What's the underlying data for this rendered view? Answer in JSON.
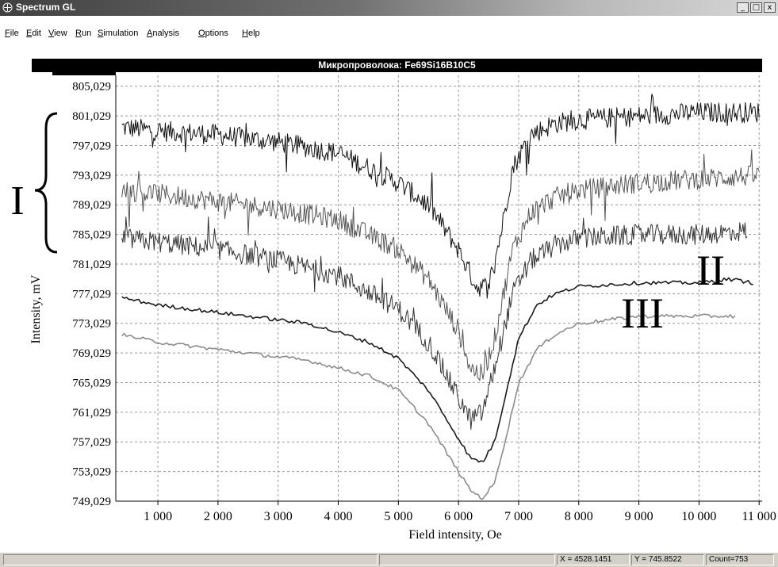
{
  "window": {
    "title": "Spectrum GL",
    "minimize": "_",
    "maximize": "□",
    "close": "x"
  },
  "menu": [
    "File",
    "Edit",
    "View",
    "Run",
    "Simulation",
    "Analysis",
    "Options",
    "Help"
  ],
  "plot_header": "Микропроволока: Fe69Si16B10C5",
  "status": {
    "x": "X = 4528.1451",
    "y": "Y = 745.8522",
    "count": "Count=753"
  },
  "annotations": {
    "group": "I",
    "curve_2": "II",
    "curve_3": "III"
  },
  "chart_data": {
    "type": "line",
    "xlabel": "Field intensity,  Oe",
    "ylabel": "Intensity,  mV",
    "xlim": [
      300,
      11050
    ],
    "ylim": [
      749.029,
      806.5
    ],
    "x_ticks": [
      1000,
      2000,
      3000,
      4000,
      5000,
      6000,
      7000,
      8000,
      9000,
      10000,
      11000
    ],
    "x_tick_labels": [
      "1 000",
      "2 000",
      "3 000",
      "4 000",
      "5 000",
      "6 000",
      "7 000",
      "8 000",
      "9 000",
      "10 000",
      "11 000"
    ],
    "y_ticks": [
      749.029,
      753.029,
      757.029,
      761.029,
      765.029,
      769.029,
      773.029,
      777.029,
      781.029,
      785.029,
      789.029,
      793.029,
      797.029,
      801.029,
      805.029
    ],
    "y_tick_labels": [
      "749,029",
      "753,029",
      "757,029",
      "761,029",
      "765,029",
      "769,029",
      "773,029",
      "777,029",
      "781,029",
      "785,029",
      "789,029",
      "793,029",
      "797,029",
      "801,029",
      "805,029"
    ],
    "grid": true,
    "series": [
      {
        "x": [
          400,
          1000,
          2000,
          3000,
          4000,
          5000,
          5500,
          6000,
          6300,
          6500,
          6700,
          6900,
          7200,
          7600,
          8000,
          9000,
          10000,
          11000
        ],
        "values": [
          799.5,
          799.0,
          798.5,
          797.5,
          796.0,
          792.0,
          789.0,
          783.0,
          778.0,
          778.0,
          785.0,
          794.0,
          798.5,
          800.0,
          800.5,
          801.0,
          801.5,
          801.5
        ],
        "color": "#111111",
        "noise": 1.4
      },
      {
        "x": [
          400,
          1000,
          2000,
          3000,
          4000,
          5000,
          5500,
          6000,
          6200,
          6400,
          6600,
          6900,
          7200,
          7600,
          8000,
          9000,
          10000,
          11000
        ],
        "values": [
          791.0,
          790.5,
          789.5,
          788.5,
          787.0,
          783.0,
          779.0,
          772.0,
          767.0,
          766.0,
          771.0,
          783.0,
          788.0,
          790.0,
          791.0,
          792.0,
          792.5,
          793.0
        ],
        "color": "#555555",
        "noise": 1.4
      },
      {
        "x": [
          400,
          1000,
          2000,
          3000,
          4000,
          5000,
          5500,
          6000,
          6200,
          6400,
          6600,
          6900,
          7200,
          7600,
          8000,
          9000,
          10000,
          10800
        ],
        "values": [
          784.5,
          784.0,
          783.0,
          781.5,
          779.5,
          775.0,
          770.5,
          763.0,
          760.0,
          761.0,
          767.0,
          777.0,
          781.5,
          783.5,
          784.5,
          785.0,
          785.0,
          785.5
        ],
        "color": "#333333",
        "noise": 1.4
      },
      {
        "x": [
          400,
          1000,
          2000,
          3000,
          3500,
          4000,
          4500,
          5000,
          5500,
          6000,
          6200,
          6400,
          6600,
          6800,
          7000,
          7300,
          7600,
          8000,
          9000,
          10000,
          10500,
          10900
        ],
        "values": [
          776.5,
          775.5,
          774.5,
          773.5,
          773.0,
          771.8,
          770.5,
          768.3,
          764.0,
          757.5,
          754.8,
          754.3,
          757.0,
          764.0,
          771.0,
          775.5,
          777.0,
          778.0,
          778.5,
          778.5,
          779.0,
          778.5
        ],
        "color": "#1a1a1a",
        "noise": 0.25
      },
      {
        "x": [
          400,
          1000,
          2000,
          3000,
          3500,
          4000,
          4500,
          5000,
          5500,
          6000,
          6200,
          6400,
          6600,
          6800,
          7000,
          7300,
          7600,
          8000,
          9000,
          9500,
          10000,
          10600
        ],
        "values": [
          771.5,
          770.5,
          769.5,
          768.5,
          768.0,
          767.0,
          766.0,
          764.0,
          759.5,
          753.0,
          750.5,
          749.4,
          751.5,
          758.0,
          765.0,
          769.5,
          771.5,
          773.0,
          774.0,
          774.0,
          774.0,
          774.0
        ],
        "color": "#8c8c8c",
        "noise": 0.25
      }
    ]
  }
}
